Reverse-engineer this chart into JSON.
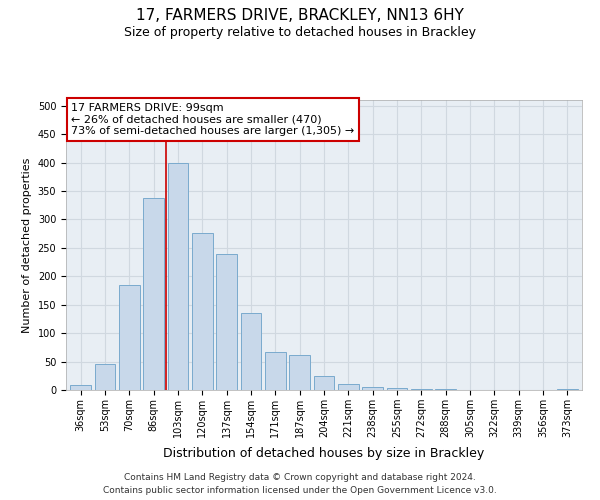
{
  "title": "17, FARMERS DRIVE, BRACKLEY, NN13 6HY",
  "subtitle": "Size of property relative to detached houses in Brackley",
  "xlabel": "Distribution of detached houses by size in Brackley",
  "ylabel": "Number of detached properties",
  "categories": [
    "36sqm",
    "53sqm",
    "70sqm",
    "86sqm",
    "103sqm",
    "120sqm",
    "137sqm",
    "154sqm",
    "171sqm",
    "187sqm",
    "204sqm",
    "221sqm",
    "238sqm",
    "255sqm",
    "272sqm",
    "288sqm",
    "305sqm",
    "322sqm",
    "339sqm",
    "356sqm",
    "373sqm"
  ],
  "values": [
    8,
    46,
    185,
    337,
    399,
    276,
    240,
    135,
    67,
    61,
    25,
    10,
    5,
    4,
    2,
    1,
    0,
    0,
    0,
    0,
    2
  ],
  "bar_color": "#c8d8ea",
  "bar_edge_color": "#7aaace",
  "vline_x": 3.5,
  "vline_color": "#cc0000",
  "annotation_text": "17 FARMERS DRIVE: 99sqm\n← 26% of detached houses are smaller (470)\n73% of semi-detached houses are larger (1,305) →",
  "annotation_box_facecolor": "#ffffff",
  "annotation_box_edgecolor": "#cc0000",
  "ylim": [
    0,
    510
  ],
  "yticks": [
    0,
    50,
    100,
    150,
    200,
    250,
    300,
    350,
    400,
    450,
    500
  ],
  "grid_color": "#d0d8e0",
  "bg_color": "#e8eef4",
  "footer_line1": "Contains HM Land Registry data © Crown copyright and database right 2024.",
  "footer_line2": "Contains public sector information licensed under the Open Government Licence v3.0.",
  "title_fontsize": 11,
  "subtitle_fontsize": 9,
  "xlabel_fontsize": 9,
  "ylabel_fontsize": 8,
  "tick_fontsize": 7,
  "annotation_fontsize": 8,
  "footer_fontsize": 6.5
}
